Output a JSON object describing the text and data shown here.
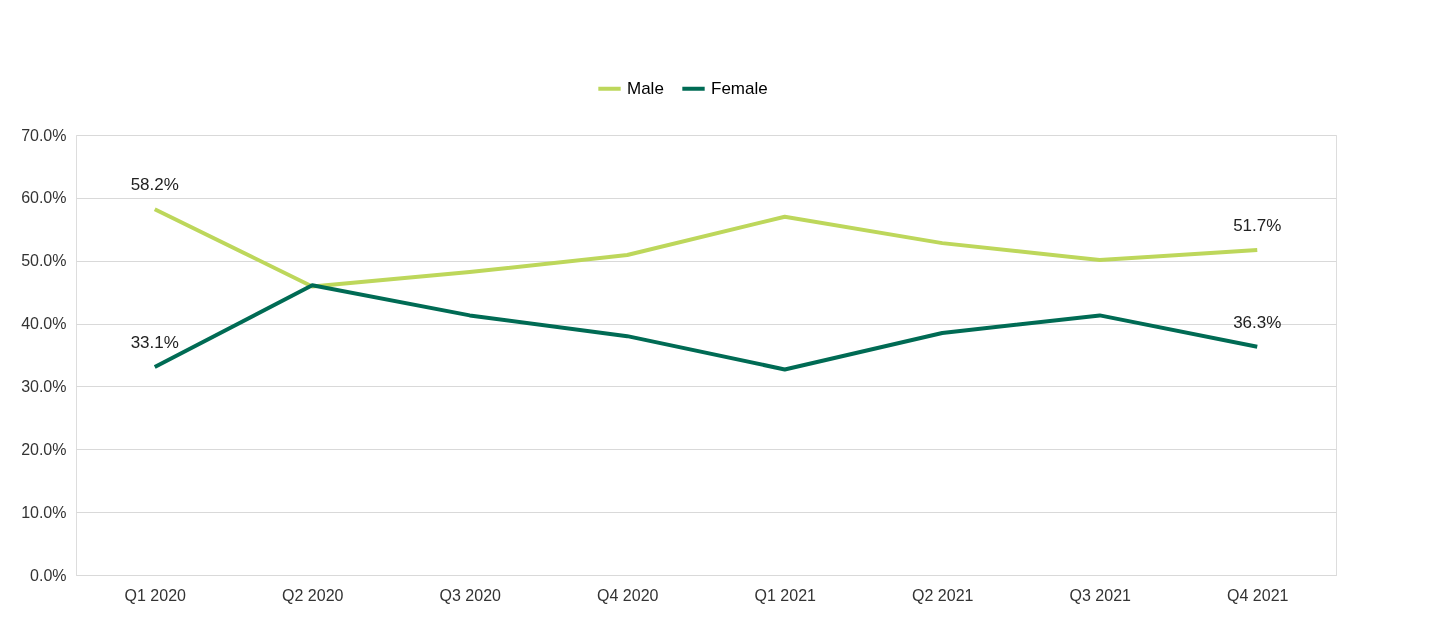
{
  "chart_data": {
    "type": "line",
    "categories": [
      "Q1 2020",
      "Q2 2020",
      "Q3 2020",
      "Q4 2020",
      "Q1 2021",
      "Q2 2021",
      "Q3 2021",
      "Q4 2021"
    ],
    "series": [
      {
        "name": "Male",
        "color": "#bdd75b",
        "values": [
          58.2,
          45.9,
          48.2,
          50.9,
          57.0,
          52.8,
          50.1,
          51.7
        ],
        "value_labels": [
          "58.2%",
          null,
          null,
          null,
          null,
          null,
          null,
          "51.7%"
        ]
      },
      {
        "name": "Female",
        "color": "#006b54",
        "values": [
          33.1,
          46.1,
          41.3,
          38.0,
          32.7,
          38.5,
          41.3,
          36.3
        ],
        "value_labels": [
          "33.1%",
          null,
          null,
          null,
          null,
          null,
          null,
          "36.3%"
        ]
      }
    ],
    "ylim": [
      0,
      70
    ],
    "yticks": [
      {
        "value": 0,
        "label": "0.0%"
      },
      {
        "value": 10,
        "label": "10.0%"
      },
      {
        "value": 20,
        "label": "20.0%"
      },
      {
        "value": 30,
        "label": "30.0%"
      },
      {
        "value": 40,
        "label": "40.0%"
      },
      {
        "value": 50,
        "label": "50.0%"
      },
      {
        "value": 60,
        "label": "60.0%"
      },
      {
        "value": 70,
        "label": "70.0%"
      }
    ],
    "grid": "y",
    "legend": "top",
    "marker": "none",
    "line_style": "solid"
  }
}
